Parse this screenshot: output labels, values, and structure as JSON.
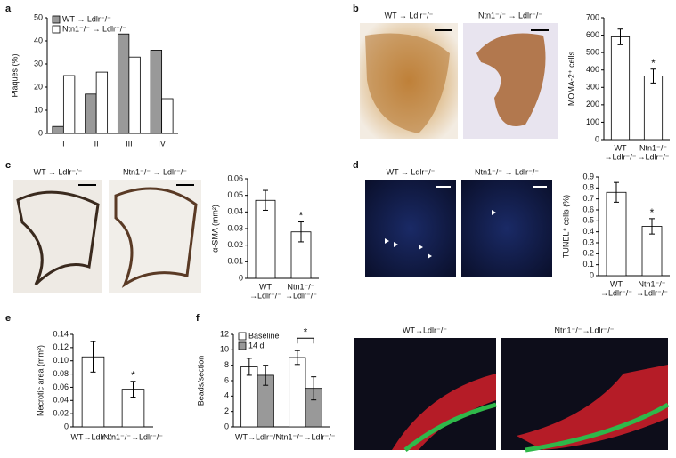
{
  "panel_labels": [
    "a",
    "b",
    "c",
    "d",
    "e",
    "f"
  ],
  "images": {
    "b": [
      "WT → Ldlr⁻/⁻",
      "Ntn1⁻/⁻ → Ldlr⁻/⁻"
    ],
    "c": [
      "WT → Ldlr⁻/⁻",
      "Ntn1⁻/⁻ → Ldlr⁻/⁻"
    ],
    "d": [
      "WT → Ldlr⁻/⁻",
      "Ntn1⁻/⁻ → Ldlr⁻/⁻"
    ],
    "f": [
      "WT→Ldlr⁻/⁻",
      "Ntn1⁻/⁻→Ldlr⁻/⁻"
    ]
  },
  "chart_data": [
    {
      "type": "bar",
      "categories": [
        "I",
        "II",
        "III",
        "IV"
      ],
      "series": [
        {
          "name": "WT → Ldlr⁻/⁻",
          "color": "#999999",
          "values": [
            3,
            17,
            43,
            36
          ]
        },
        {
          "name": "Ntn1⁻/⁻ → Ldlr⁻/⁻",
          "color": "#ffffff",
          "values": [
            25,
            26.5,
            33,
            15
          ]
        }
      ],
      "ylabel": "Plaques (%)",
      "ylim": [
        0,
        50
      ],
      "yticks": [
        0,
        10,
        20,
        30,
        40,
        50
      ],
      "legend": "upper left"
    },
    {
      "type": "bar",
      "categories": [
        [
          "WT",
          "→Ldlr⁻/⁻"
        ],
        [
          "Ntn1⁻/⁻",
          "→Ldlr⁻/⁻"
        ]
      ],
      "values": [
        590,
        365
      ],
      "errors": [
        45,
        40
      ],
      "color": "#ffffff",
      "ylabel": "MOMA-2⁺ cells",
      "ylim": [
        0,
        700
      ],
      "yticks": [
        0,
        100,
        200,
        300,
        400,
        500,
        600,
        700
      ],
      "annotation": "*"
    },
    {
      "type": "bar",
      "categories": [
        [
          "WT",
          "→Ldlr⁻/⁻"
        ],
        [
          "Ntn1⁻/⁻",
          "→Ldlr⁻/⁻"
        ]
      ],
      "values": [
        0.047,
        0.028
      ],
      "errors": [
        0.006,
        0.006
      ],
      "color": "#ffffff",
      "ylabel": "α-SMA (mm²)",
      "ylim": [
        0,
        0.06
      ],
      "yticks": [
        0,
        0.01,
        0.02,
        0.03,
        0.04,
        0.05,
        0.06
      ],
      "annotation": "*"
    },
    {
      "type": "bar",
      "categories": [
        [
          "WT",
          "→Ldlr⁻/⁻"
        ],
        [
          "Ntn1⁻/⁻",
          "→Ldlr⁻/⁻"
        ]
      ],
      "values": [
        0.76,
        0.45
      ],
      "errors": [
        0.09,
        0.07
      ],
      "color": "#ffffff",
      "ylabel": "TUNEL⁺ cells (%)",
      "ylim": [
        0,
        0.9
      ],
      "yticks": [
        0,
        0.1,
        0.2,
        0.3,
        0.4,
        0.5,
        0.6,
        0.7,
        0.8,
        0.9
      ],
      "annotation": "*"
    },
    {
      "type": "bar",
      "categories": [
        "WT→Ldlr⁻/⁻",
        "Ntn1⁻/⁻→Ldlr⁻/⁻"
      ],
      "values": [
        0.106,
        0.057
      ],
      "errors": [
        0.023,
        0.012
      ],
      "color": "#ffffff",
      "ylabel": "Necrotic area (mm²)",
      "ylim": [
        0,
        0.14
      ],
      "yticks": [
        0,
        0.02,
        0.04,
        0.06,
        0.08,
        {
          "value": 0.1,
          "label": "0.10"
        },
        0.12,
        0.14
      ],
      "annotation": "*"
    },
    {
      "type": "bar",
      "categories": [
        "WT→Ldlr⁻/⁻",
        "Ntn1⁻/⁻→Ldlr⁻/⁻"
      ],
      "series": [
        {
          "name": "Baseline",
          "color": "#ffffff",
          "values": [
            7.8,
            9.0
          ],
          "errors": [
            1.1,
            0.9
          ]
        },
        {
          "name": "14 d",
          "color": "#999999",
          "values": [
            6.7,
            5.0
          ],
          "errors": [
            1.3,
            1.5
          ]
        }
      ],
      "ylabel": "Beads/section",
      "ylim": [
        0,
        12
      ],
      "yticks": [
        0,
        2,
        4,
        6,
        8,
        10,
        12
      ],
      "legend": "upper left",
      "annotation": "*"
    }
  ]
}
